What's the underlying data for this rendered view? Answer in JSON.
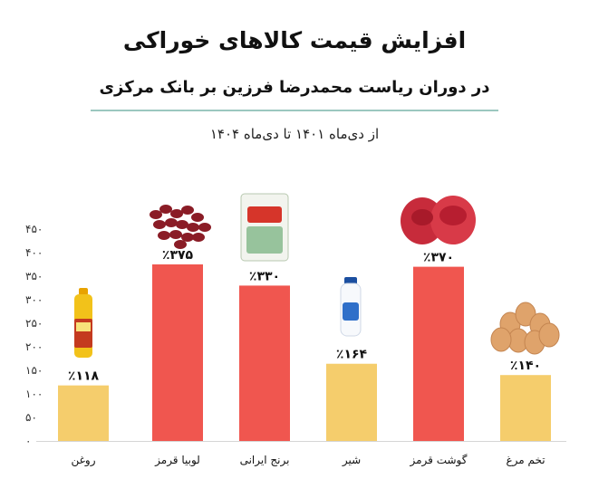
{
  "header": {
    "title": "افزایش قیمت کالاهای خوراکی",
    "subtitle": "در دوران ریاست محمدرضا فرزین بر بانک مرکزی",
    "period": "از دی‌ماه ۱۴۰۱ تا دی‌ماه ۱۴۰۴"
  },
  "chart_data": {
    "type": "bar",
    "categories": [
      "روغن",
      "لوبیا قرمز",
      "برنج ایرانی",
      "شیر",
      "گوشت قرمز",
      "تخم مرغ"
    ],
    "values": [
      118,
      375,
      330,
      164,
      370,
      140
    ],
    "value_labels": [
      "٪۱۱۸",
      "٪۳۷۵",
      "٪۳۳۰",
      "٪۱۶۴",
      "٪۳۷۰",
      "٪۱۴۰"
    ],
    "yticks": [
      "۰",
      "۵۰",
      "۱۰۰",
      "۱۵۰",
      "۲۰۰",
      "۲۵۰",
      "۳۰۰",
      "۳۵۰",
      "۴۰۰",
      "۴۵۰"
    ],
    "ylim": [
      0,
      450
    ],
    "bar_colors": [
      "#f5cd6c",
      "#f0564f",
      "#f0564f",
      "#f5cd6c",
      "#f0564f",
      "#f5cd6c"
    ],
    "item_icons": [
      "oil-bottle-icon",
      "red-beans-icon",
      "rice-bag-icon",
      "milk-bottle-icon",
      "red-meat-icon",
      "eggs-icon"
    ]
  }
}
